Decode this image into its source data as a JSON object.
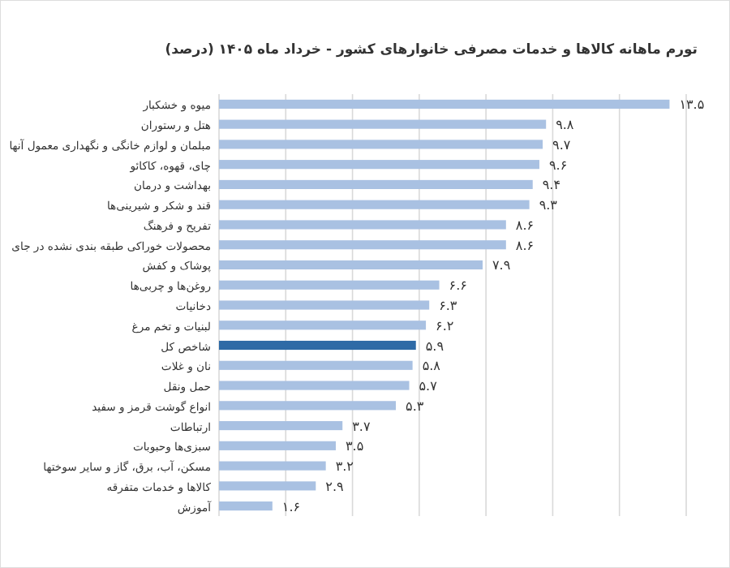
{
  "chart_data": {
    "type": "bar",
    "orientation": "horizontal",
    "title": "تورم ماهانه کالاها و خدمات مصرفی خانوارهای کشور - خرداد ماه ۱۴۰۵ (درصد)",
    "categories": [
      "میوه و خشکبار",
      "هتل و رستوران",
      "مبلمان و لوازم خانگی و نگهداری معمول آنها",
      "چای، قهوه، کاکائو",
      "بهداشت و درمان",
      "قند و شکر و شیرینی‌ها",
      "تفریح و فرهنگ",
      "محصولات خوراکی طبقه بندی نشده در جای",
      "پوشاک و کفش",
      "روغن‌ها و چربی‌ها",
      "دخانیات",
      "لبنیات و تخم مرغ",
      "شاخص کل",
      "نان و غلات",
      "حمل ونقل",
      "انواع گوشت قرمز و سفید",
      "ارتباطات",
      "سبزی‌ها وحبوبات",
      "مسکن، آب، برق، گاز و سایر سوختها",
      "کالاها و خدمات متفرقه",
      "آموزش"
    ],
    "values": [
      13.5,
      9.8,
      9.7,
      9.6,
      9.4,
      9.3,
      8.6,
      8.6,
      7.9,
      6.6,
      6.3,
      6.2,
      5.9,
      5.8,
      5.7,
      5.3,
      3.7,
      3.5,
      3.2,
      2.9,
      1.6
    ],
    "value_labels": [
      "۱۳.۵",
      "۹.۸",
      "۹.۷",
      "۹.۶",
      "۹.۴",
      "۹.۳",
      "۸.۶",
      "۸.۶",
      "۷.۹",
      "۶.۶",
      "۶.۳",
      "۶.۲",
      "۵.۹",
      "۵.۸",
      "۵.۷",
      "۵.۳",
      "۳.۷",
      "۳.۵",
      "۳.۲",
      "۲.۹",
      "۱.۶"
    ],
    "colors": [
      "#a9c1e2",
      "#a9c1e2",
      "#a9c1e2",
      "#a9c1e2",
      "#a9c1e2",
      "#a9c1e2",
      "#a9c1e2",
      "#a9c1e2",
      "#a9c1e2",
      "#a9c1e2",
      "#a9c1e2",
      "#a9c1e2",
      "#2e6aa6",
      "#a9c1e2",
      "#a9c1e2",
      "#a9c1e2",
      "#a9c1e2",
      "#a9c1e2",
      "#a9c1e2",
      "#a9c1e2",
      "#a9c1e2"
    ],
    "xlim": [
      0,
      14
    ],
    "xticks": [
      {
        "value": 0,
        "label": null
      },
      {
        "value": 2,
        "label": null
      },
      {
        "value": 4,
        "label": null
      },
      {
        "value": 6,
        "label": null
      },
      {
        "value": 8,
        "label": null
      },
      {
        "value": 10,
        "label": null
      },
      {
        "value": 12,
        "label": null
      },
      {
        "value": 14,
        "label": null
      }
    ],
    "grid": "x",
    "tick_labels": "y"
  }
}
